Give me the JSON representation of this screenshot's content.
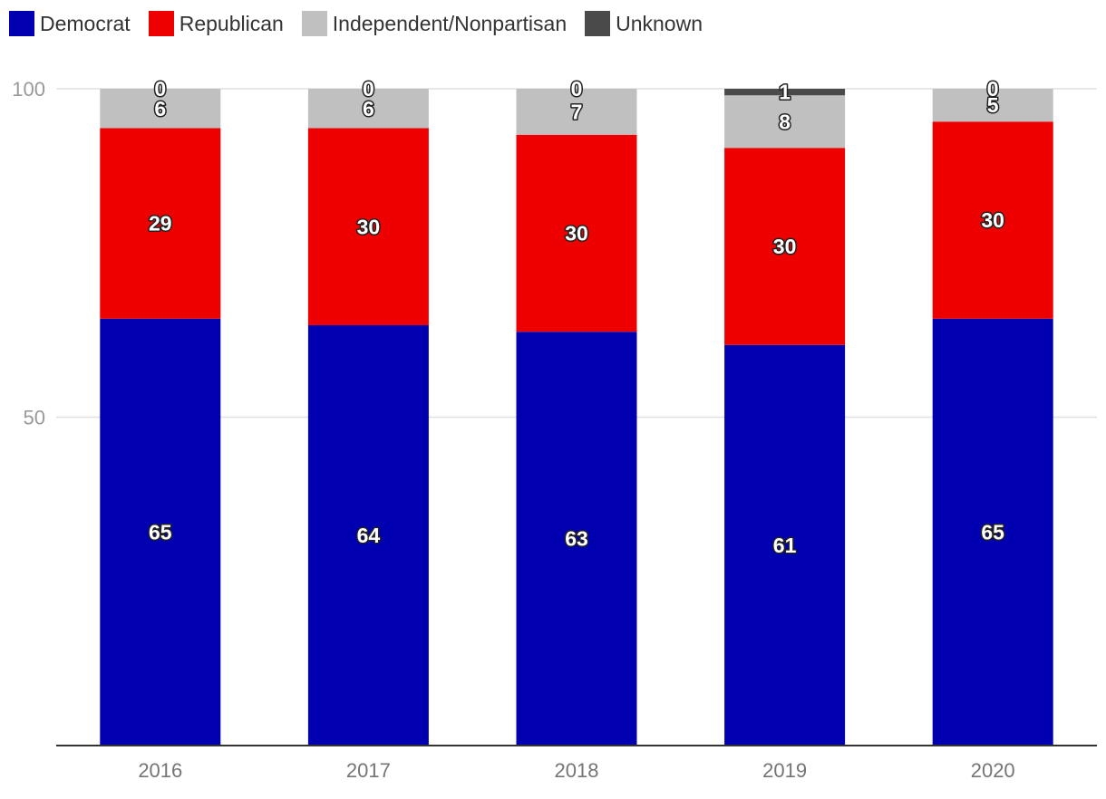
{
  "chart_data": {
    "type": "bar",
    "stacked": true,
    "categories": [
      "2016",
      "2017",
      "2018",
      "2019",
      "2020"
    ],
    "series": [
      {
        "name": "Democrat",
        "color": "#0000b0",
        "values": [
          65,
          64,
          63,
          61,
          65
        ]
      },
      {
        "name": "Republican",
        "color": "#ee0000",
        "values": [
          29,
          30,
          30,
          30,
          30
        ]
      },
      {
        "name": "Independent/Nonpartisan",
        "color": "#c0c0c0",
        "values": [
          6,
          6,
          7,
          8,
          5
        ]
      },
      {
        "name": "Unknown",
        "color": "#4a4a4a",
        "values": [
          0,
          0,
          0,
          1,
          0
        ]
      }
    ],
    "yticks": [
      "50",
      "100"
    ],
    "ylim": [
      0,
      100
    ],
    "grid": true,
    "legend": "top-left"
  }
}
